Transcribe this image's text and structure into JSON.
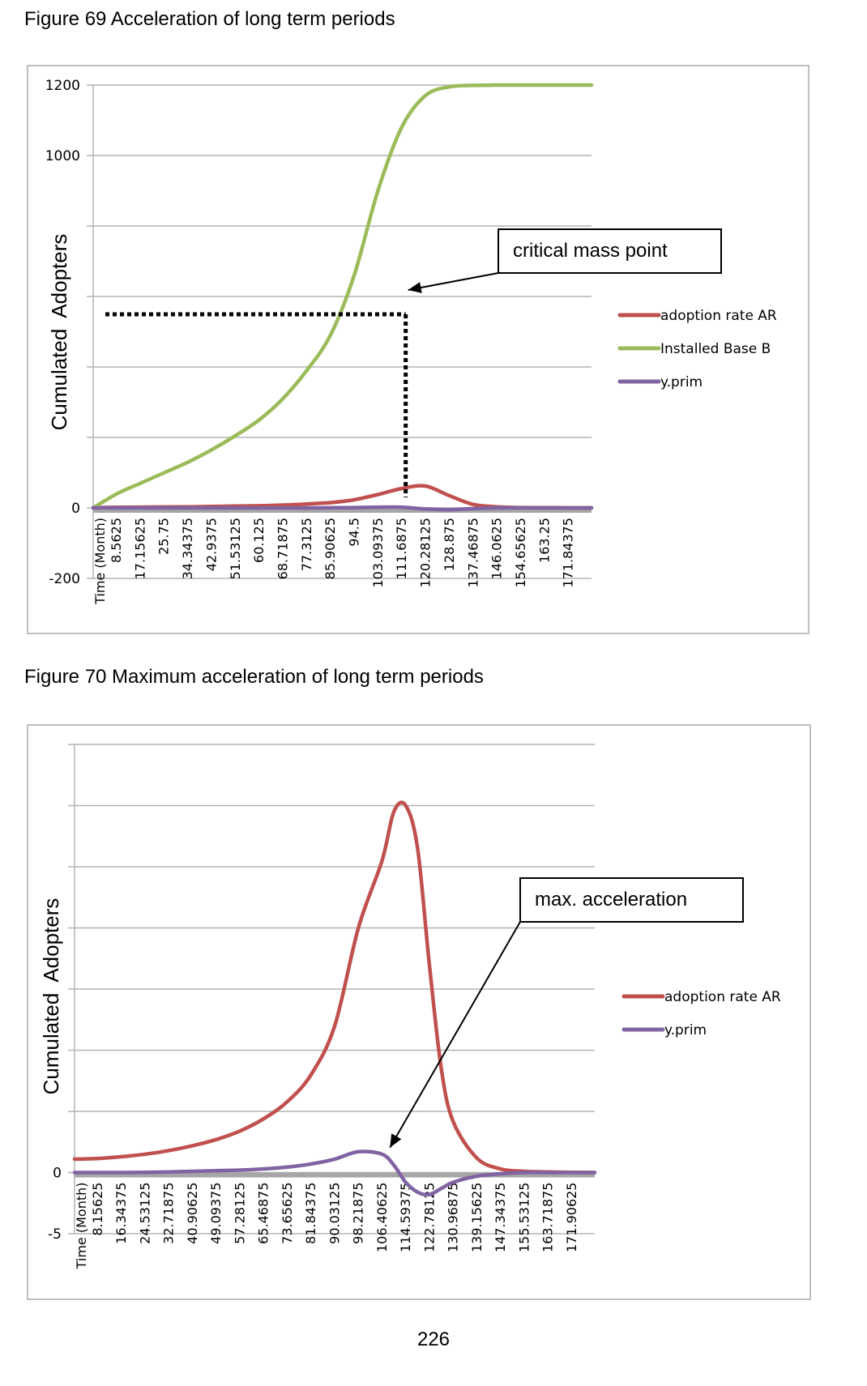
{
  "page_number": "226",
  "chart_data": [
    {
      "type": "line",
      "title": "Figure 69 Acceleration of long term periods",
      "ylabel": "Cumulated  Adopters",
      "xlabel": "Time (Month)",
      "ylim": [
        -200,
        1200
      ],
      "yticks": [
        -200,
        0,
        200,
        400,
        600,
        800,
        1000,
        1200
      ],
      "ytick_labels": [
        "-200",
        "0",
        "",
        "",
        "",
        "",
        "1000",
        "1200"
      ],
      "grid": true,
      "legend": "right",
      "x_tick_labels": [
        "8.5625",
        "17.15625",
        "25.75",
        "34.34375",
        "42.9375",
        "51.53125",
        "60.125",
        "68.71875",
        "77.3125",
        "85.90625",
        "94.5",
        "103.09375",
        "111.6875",
        "120.28125",
        "128.875",
        "137.46875",
        "146.0625",
        "154.65625",
        "163.25",
        "171.84375"
      ],
      "x": [
        0,
        8.5625,
        17.15625,
        25.75,
        34.34375,
        42.9375,
        51.53125,
        60.125,
        68.71875,
        77.3125,
        85.90625,
        94.5,
        103.09375,
        111.6875,
        120.28125,
        128.875,
        137.46875,
        146.0625,
        154.65625,
        163.25,
        171.84375,
        180.4375
      ],
      "xlim": [
        0,
        180.4375
      ],
      "series": [
        {
          "name": "adoption rate AR",
          "color": "#c0504d",
          "values": [
            1,
            1.5,
            2,
            2.5,
            3,
            4,
            5,
            6,
            8,
            11,
            15,
            23,
            38,
            55,
            62,
            35,
            10,
            3,
            1,
            0.5,
            0.3,
            0.2
          ]
        },
        {
          "name": "Installed Base B",
          "color": "#9bbb59",
          "values": [
            0,
            40,
            70,
            100,
            130,
            165,
            205,
            250,
            310,
            390,
            490,
            660,
            900,
            1080,
            1170,
            1195,
            1199,
            1200,
            1200,
            1200,
            1200,
            1200
          ]
        },
        {
          "name": "y.prim",
          "color": "#8064a2",
          "values": [
            0,
            0,
            0,
            0,
            0,
            0,
            0,
            0,
            0,
            0,
            0.5,
            1,
            2,
            2,
            -3,
            -5,
            -2,
            0,
            0,
            0,
            0,
            0
          ]
        }
      ],
      "annotations": [
        {
          "text": "critical mass point",
          "points_to_x": 111.6875,
          "points_to_y": 600
        }
      ]
    },
    {
      "type": "line",
      "title": "Figure 70 Maximum acceleration of long term periods",
      "ylabel": "Cumulated  Adopters",
      "xlabel": "Time (Month)",
      "ylim": [
        -5,
        35
      ],
      "yticks": [
        -5,
        0,
        5,
        10,
        15,
        20,
        25,
        30,
        35
      ],
      "ytick_labels": [
        "-5",
        "0",
        "",
        "",
        "",
        "",
        "",
        "",
        ""
      ],
      "grid": true,
      "legend": "right",
      "x_tick_labels": [
        "8.15625",
        "16.34375",
        "24.53125",
        "32.71875",
        "40.90625",
        "49.09375",
        "57.28125",
        "65.46875",
        "73.65625",
        "81.84375",
        "90.03125",
        "98.21875",
        "106.40625",
        "114.59375",
        "122.78125",
        "130.96875",
        "139.15625",
        "147.34375",
        "155.53125",
        "163.71875",
        "171.90625"
      ],
      "x": [
        0,
        8.15625,
        16.34375,
        24.53125,
        32.71875,
        40.90625,
        49.09375,
        57.28125,
        65.46875,
        73.65625,
        81.84375,
        90.03125,
        98.21875,
        106.40625,
        110.5,
        114.59375,
        118.7,
        122.78125,
        126.9,
        130.96875,
        139.15625,
        147.34375,
        155.53125,
        163.71875,
        171.90625,
        180.0
      ],
      "xlim": [
        0,
        180.0
      ],
      "series": [
        {
          "name": "adoption rate AR",
          "color": "#c0504d",
          "values": [
            1.1,
            1.15,
            1.3,
            1.5,
            1.8,
            2.2,
            2.7,
            3.4,
            4.4,
            5.8,
            8.0,
            12.0,
            20.0,
            25.5,
            29.5,
            30.0,
            26.5,
            17.0,
            8.5,
            4.2,
            1.2,
            0.3,
            0.1,
            0.05,
            0.02,
            0.0
          ]
        },
        {
          "name": "y.prim",
          "color": "#8064a2",
          "values": [
            0,
            0,
            0,
            0.02,
            0.05,
            0.1,
            0.15,
            0.2,
            0.3,
            0.45,
            0.7,
            1.1,
            1.7,
            1.5,
            0.6,
            -0.8,
            -1.6,
            -1.8,
            -1.3,
            -0.8,
            -0.3,
            -0.1,
            0,
            0,
            0,
            0
          ]
        }
      ],
      "annotations": [
        {
          "text": "max. acceleration",
          "points_to_x": 112.5,
          "points_to_y": 3.5
        }
      ]
    }
  ]
}
